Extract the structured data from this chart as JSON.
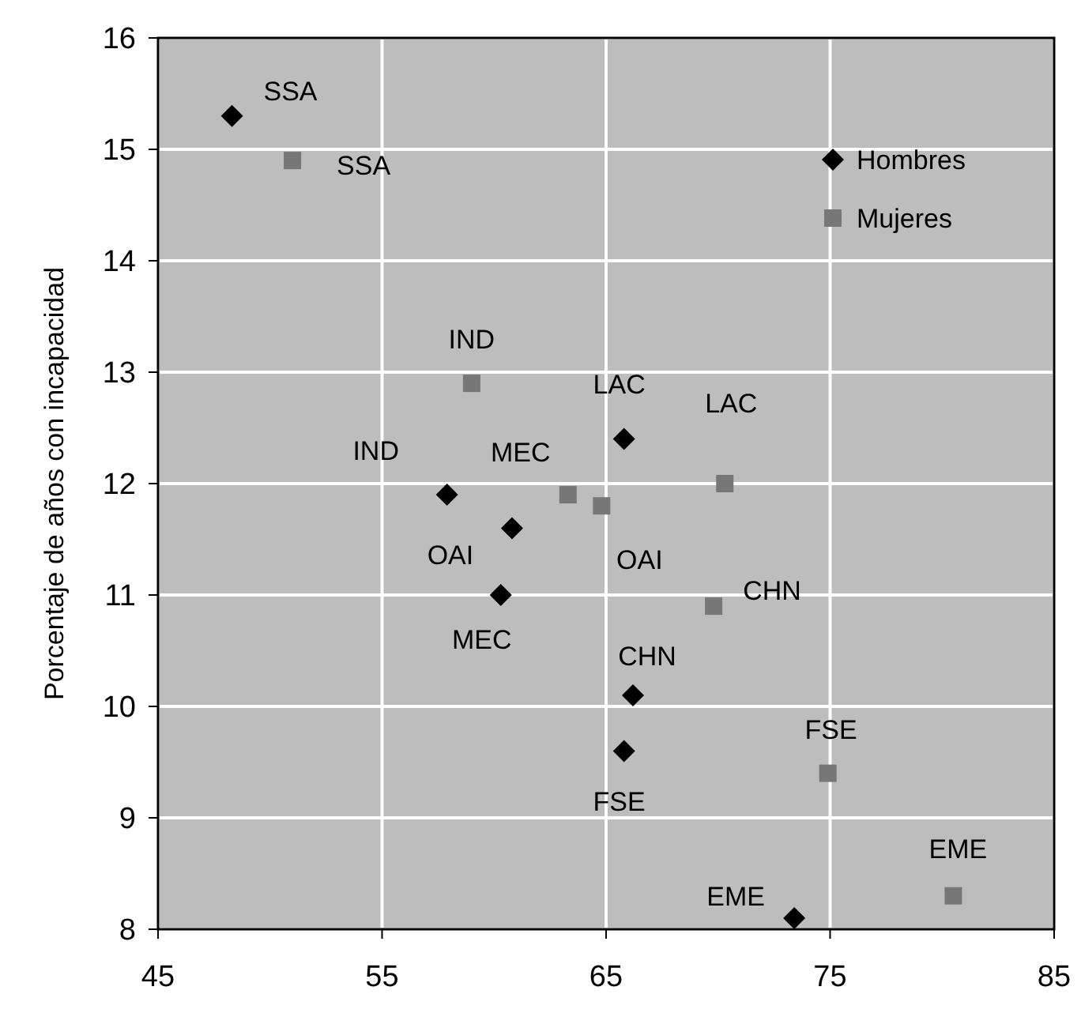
{
  "chart_data": {
    "type": "scatter",
    "ylabel": "Porcentaje de años con incapacidad",
    "xlim": [
      45,
      85
    ],
    "xticks": [
      45,
      55,
      65,
      75,
      85
    ],
    "ylim": [
      8,
      16
    ],
    "yticks": [
      8,
      9,
      10,
      11,
      12,
      13,
      14,
      15,
      16
    ],
    "grid": true,
    "legend": "top right",
    "series": [
      {
        "name": "Hombres",
        "color": "#000000",
        "marker": "diamond",
        "x": [
          48.3,
          57.9,
          65.8,
          60.8,
          60.3,
          66.2,
          65.8,
          73.4
        ],
        "values": [
          15.3,
          11.9,
          12.4,
          11.6,
          11.0,
          10.1,
          9.6,
          8.1
        ]
      },
      {
        "name": "Mujeres",
        "color": "#777777",
        "marker": "square",
        "x": [
          51.0,
          59.0,
          63.3,
          64.8,
          70.3,
          69.8,
          74.9,
          80.5
        ],
        "values": [
          14.9,
          12.9,
          11.9,
          11.8,
          12.0,
          10.9,
          9.4,
          8.3
        ]
      }
    ],
    "annotations": [
      {
        "text": "SSA",
        "x": 48.3,
        "y": 15.3
      },
      {
        "text": "IND",
        "x": 57.9,
        "y": 11.9
      },
      {
        "text": "LAC",
        "x": 65.8,
        "y": 12.4
      },
      {
        "text": "OAI",
        "x": 60.8,
        "y": 11.6
      },
      {
        "text": "MEC",
        "x": 60.3,
        "y": 11.0
      },
      {
        "text": "CHN",
        "x": 66.2,
        "y": 10.1
      },
      {
        "text": "FSE",
        "x": 65.8,
        "y": 9.6
      },
      {
        "text": "EME",
        "x": 73.4,
        "y": 8.1
      },
      {
        "text": "SSA",
        "x": 51.0,
        "y": 14.9
      },
      {
        "text": "IND",
        "x": 59.0,
        "y": 12.9
      },
      {
        "text": "MEC",
        "x": 63.3,
        "y": 11.9
      },
      {
        "text": "OAI",
        "x": 64.8,
        "y": 11.8
      },
      {
        "text": "LAC",
        "x": 70.3,
        "y": 12.0
      },
      {
        "text": "CHN",
        "x": 69.8,
        "y": 10.9
      },
      {
        "text": "FSE",
        "x": 74.9,
        "y": 9.4
      },
      {
        "text": "EME",
        "x": 80.5,
        "y": 8.3
      }
    ]
  }
}
